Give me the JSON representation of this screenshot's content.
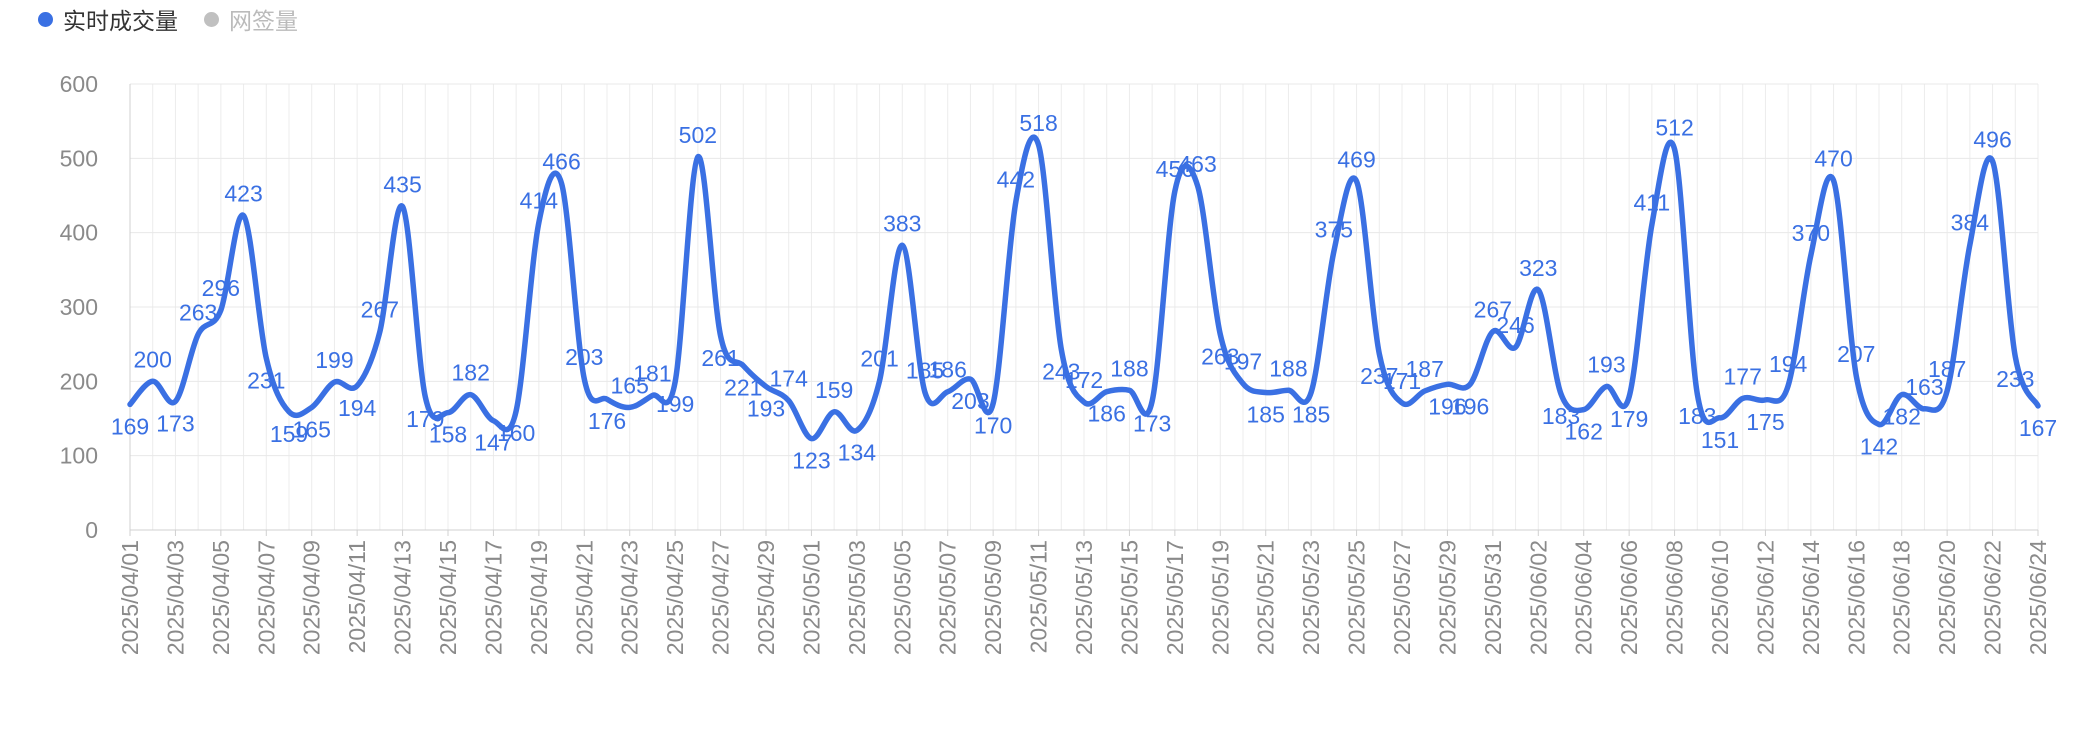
{
  "chart_data": {
    "type": "line",
    "legend": [
      {
        "name": "实时成交量",
        "color": "#3a70e3",
        "active": true
      },
      {
        "name": "网签量",
        "color": "#c0c0c0",
        "active": false
      }
    ],
    "y_ticks": [
      "600",
      "500",
      "400",
      "300",
      "200",
      "100",
      "0"
    ],
    "ylim": [
      0,
      600
    ],
    "x_tick_labels": [
      "2025/04/01",
      "2025/04/03",
      "2025/04/05",
      "2025/04/07",
      "2025/04/09",
      "2025/04/11",
      "2025/04/13",
      "2025/04/15",
      "2025/04/17",
      "2025/04/19",
      "2025/04/21",
      "2025/04/23",
      "2025/04/25",
      "2025/04/27",
      "2025/04/29",
      "2025/05/01",
      "2025/05/03",
      "2025/05/05",
      "2025/05/07",
      "2025/05/09",
      "2025/05/11",
      "2025/05/13",
      "2025/05/15",
      "2025/05/17",
      "2025/05/19",
      "2025/05/21",
      "2025/05/23",
      "2025/05/25",
      "2025/05/27",
      "2025/05/29",
      "2025/05/31",
      "2025/06/02",
      "2025/06/04",
      "2025/06/06",
      "2025/06/08",
      "2025/06/10",
      "2025/06/12",
      "2025/06/14",
      "2025/06/16",
      "2025/06/18",
      "2025/06/20",
      "2025/06/22",
      "2025/06/24"
    ],
    "series": [
      {
        "name": "实时成交量",
        "color": "#3a70e3",
        "values": [
          169,
          200,
          173,
          263,
          296,
          423,
          231,
          159,
          165,
          199,
          194,
          267,
          435,
          179,
          158,
          182,
          147,
          160,
          414,
          466,
          203,
          176,
          165,
          181,
          199,
          502,
          261,
          221,
          193,
          174,
          123,
          159,
          134,
          201,
          383,
          185,
          186,
          203,
          170,
          442,
          518,
          243,
          172,
          186,
          188,
          173,
          456,
          463,
          263,
          197,
          185,
          188,
          185,
          375,
          469,
          237,
          171,
          187,
          196,
          196,
          267,
          246,
          323,
          183,
          162,
          193,
          179,
          411,
          512,
          183,
          151,
          177,
          175,
          194,
          370,
          470,
          207,
          142,
          182,
          163,
          187,
          384,
          496,
          233,
          167
        ],
        "label_positions": [
          "b",
          "a",
          "b",
          "a",
          "a",
          "a",
          "b",
          "b",
          "b",
          "a",
          "b",
          "a",
          "a",
          "b",
          "b",
          "a",
          "b",
          "b",
          "a",
          "a",
          "a",
          "b",
          "a",
          "a",
          "b",
          "a",
          "b",
          "b",
          "b",
          "a",
          "b",
          "a",
          "b",
          "a",
          "a",
          "a",
          "a",
          "b",
          "b",
          "a",
          "a",
          "b",
          "a",
          "b",
          "a",
          "b",
          "a",
          "a",
          "b",
          "a",
          "b",
          "a",
          "b",
          "a",
          "a",
          "b",
          "a",
          "a",
          "b",
          "b",
          "a",
          "a",
          "a",
          "b",
          "b",
          "a",
          "b",
          "a",
          "a",
          "b",
          "b",
          "a",
          "b",
          "a",
          "a",
          "a",
          "a",
          "b",
          "b",
          "a",
          "a",
          "a",
          "a",
          "b",
          "b"
        ]
      }
    ]
  }
}
